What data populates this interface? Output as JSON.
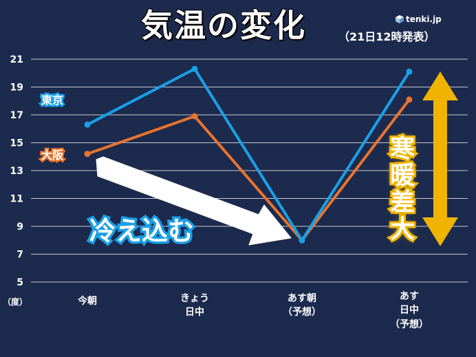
{
  "title": "気温の変化",
  "subtitle": "（21日12時発表）",
  "logo": "tenki.jp",
  "unit_label": "（度）",
  "cold_label": "冷え込む",
  "range_label": [
    "寒",
    "暖",
    "差",
    "大"
  ],
  "colors": {
    "background": "#1c2a4d",
    "tokyo": "#1aa0e6",
    "osaka": "#e8742e",
    "arrow_gold": "#f0b400",
    "grid": "#c8ccd6"
  },
  "chart_data": {
    "type": "line",
    "title": "気温の変化",
    "xlabel": "",
    "ylabel": "（度）",
    "ylim": [
      5,
      21
    ],
    "yticks": [
      "21",
      "19",
      "17",
      "15",
      "13",
      "11",
      "9",
      "7",
      "5"
    ],
    "categories": [
      [
        "今朝"
      ],
      [
        "きょう",
        "日中"
      ],
      [
        "あす朝",
        "（予想）"
      ],
      [
        "あす",
        "日中",
        "（予想）"
      ]
    ],
    "series": [
      {
        "name": "東京",
        "values": [
          16.3,
          20.3,
          8.0,
          20.1
        ]
      },
      {
        "name": "大阪",
        "values": [
          14.2,
          16.9,
          8.0,
          18.1
        ]
      }
    ]
  }
}
